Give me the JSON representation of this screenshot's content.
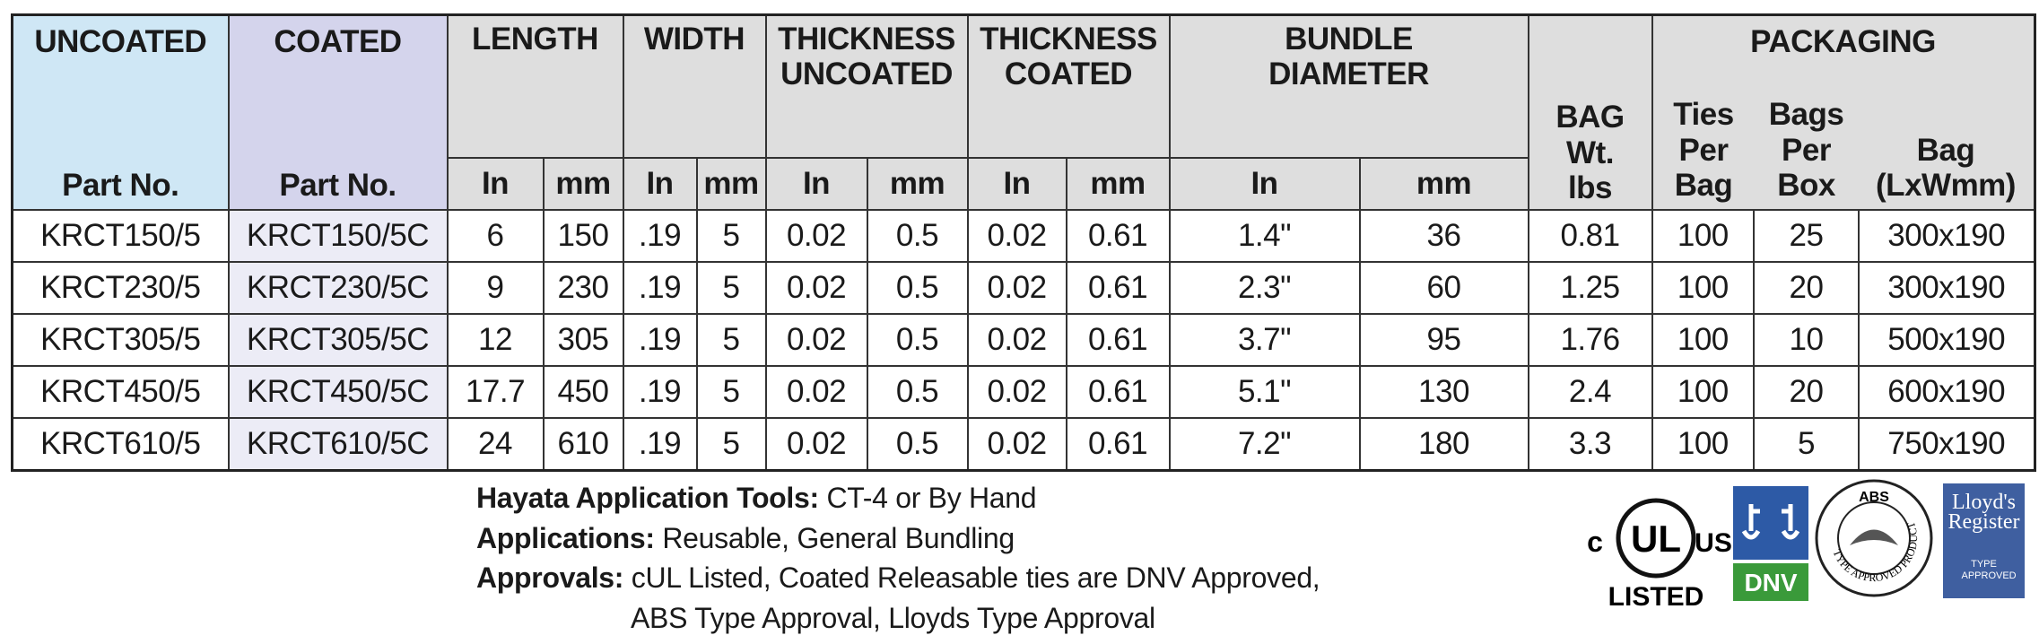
{
  "header": {
    "uncoated": [
      "UNCOATED",
      "Part No."
    ],
    "coated": [
      "COATED",
      "Part No."
    ],
    "groups": [
      "LENGTH",
      "WIDTH",
      "THICKNESS UNCOATED",
      "THICKNESS COATED",
      "BUNDLE DIAMETER"
    ],
    "units": [
      "In",
      "mm",
      "In",
      "mm",
      "In",
      "mm",
      "In",
      "mm",
      "In",
      "mm"
    ],
    "bag_weight": "BAG Wt. lbs",
    "packaging": "PACKAGING",
    "packaging_columns": [
      "Ties Per Bag",
      "Bags Per Box",
      "Bag (LxWmm)"
    ]
  },
  "table": {
    "rows": [
      [
        "KRCT150/5",
        "KRCT150/5C",
        "6",
        "150",
        ".19",
        "5",
        "0.02",
        "0.5",
        "0.02",
        "0.61",
        "1.4\"",
        "36",
        "0.81",
        "100",
        "25",
        "300x190"
      ],
      [
        "KRCT230/5",
        "KRCT230/5C",
        "9",
        "230",
        ".19",
        "5",
        "0.02",
        "0.5",
        "0.02",
        "0.61",
        "2.3\"",
        "60",
        "1.25",
        "100",
        "20",
        "300x190"
      ],
      [
        "KRCT305/5",
        "KRCT305/5C",
        "12",
        "305",
        ".19",
        "5",
        "0.02",
        "0.5",
        "0.02",
        "0.61",
        "3.7\"",
        "95",
        "1.76",
        "100",
        "10",
        "500x190"
      ],
      [
        "KRCT450/5",
        "KRCT450/5C",
        "17.7",
        "450",
        ".19",
        "5",
        "0.02",
        "0.5",
        "0.02",
        "0.61",
        "5.1\"",
        "130",
        "2.4",
        "100",
        "20",
        "600x190"
      ],
      [
        "KRCT610/5",
        "KRCT610/5C",
        "24",
        "610",
        ".19",
        "5",
        "0.02",
        "0.5",
        "0.02",
        "0.61",
        "7.2\"",
        "180",
        "3.3",
        "100",
        "5",
        "750x190"
      ]
    ]
  },
  "footer": {
    "lines": [
      {
        "label": "Hayata Application Tools:",
        "text": "CT-4 or By Hand"
      },
      {
        "label": "Applications:",
        "text": "Reusable, General Bundling"
      },
      {
        "label": "Approvals:",
        "text": "cUL Listed, Coated Releasable ties are DNV Approved,"
      }
    ],
    "continuation": "ABS Type Approval, Lloyds Type Approval"
  },
  "logos": {
    "ul": {
      "left": "c",
      "center": "UL",
      "right": "US",
      "bottom": "LISTED"
    },
    "dnv": "DNV",
    "abs": {
      "top": "ABS",
      "ring": "TYPE APPROVED PRODUCT"
    },
    "lloyds": {
      "name": "Lloyd's Register",
      "sub": "TYPE APPROVED"
    }
  }
}
